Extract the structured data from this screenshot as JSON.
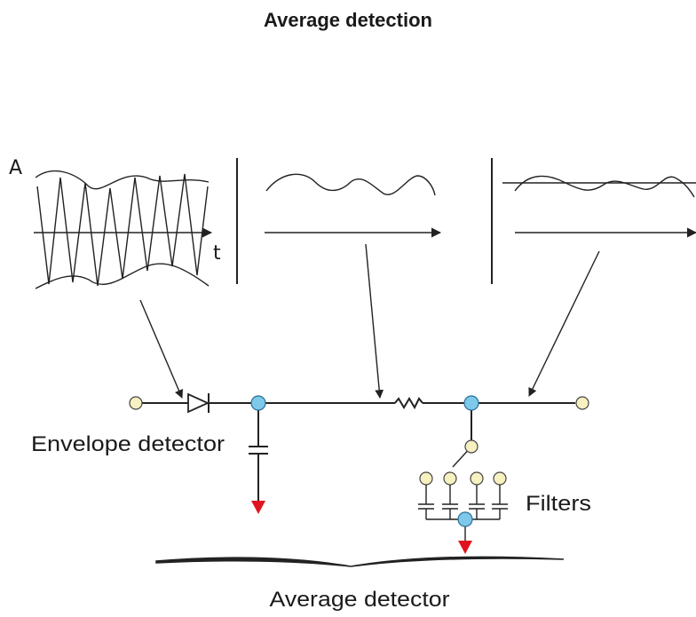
{
  "title": "Average detection",
  "labels": {
    "amplitude_axis": "A",
    "time_axis": "t",
    "envelope_detector": "Envelope detector",
    "filters": "Filters",
    "average_detector": "Average detector"
  },
  "colors": {
    "terminal": "#f7f0c0",
    "node": "#7ec8ea",
    "ground": "#e0141e",
    "line": "#222222"
  }
}
